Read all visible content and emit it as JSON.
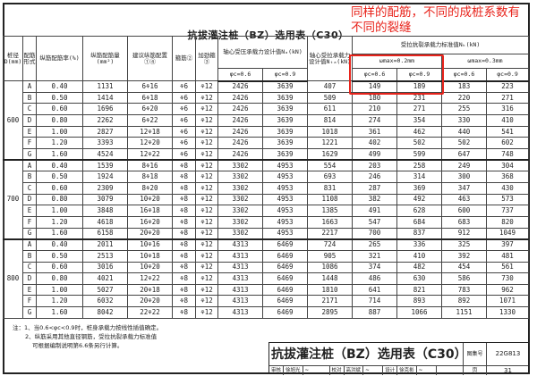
{
  "title": "抗拔灌注桩（BZ）选用表（C30）",
  "annotation": {
    "text": "同样的配筋，不同的成桩系数有不同的裂缝",
    "color": "#e8241c"
  },
  "headers": {
    "diameter": "桩径D(mm)",
    "form": "配筋形式",
    "ratio": "纵筋配筋率(%)",
    "area": "纵筋配筋量(mm²)",
    "suggest": "建议纵筋配置①④",
    "stirrup": "箍筋②",
    "ring": "加劲箍③",
    "compress": "轴心受压承载力设计值Nₐ(kN)",
    "tension": "轴心受拉承载力设计值Nₜₐ(kN)",
    "crack": "受拉抗裂承载力标准值Nₖ(kN)",
    "w02": "ωmax=0.2mm",
    "w03": "ωmax=0.3mm",
    "phi06": "φc=0.6",
    "phi09": "φc=0.9"
  },
  "groups": [
    {
      "diameter": "600",
      "rows": [
        [
          "A",
          "0.40",
          "1131",
          "6⚘16",
          "⚘6",
          "⚘12",
          "2426",
          "3639",
          "407",
          "149",
          "189",
          "183",
          "223"
        ],
        [
          "B",
          "0.50",
          "1414",
          "6⚘18",
          "⚘6",
          "⚘12",
          "2426",
          "3639",
          "509",
          "180",
          "231",
          "220",
          "271"
        ],
        [
          "C",
          "0.60",
          "1696",
          "6⚘20",
          "⚘6",
          "⚘12",
          "2426",
          "3639",
          "611",
          "210",
          "271",
          "255",
          "316"
        ],
        [
          "D",
          "0.80",
          "2262",
          "6⚘22",
          "⚘6",
          "⚘12",
          "2426",
          "3639",
          "814",
          "274",
          "354",
          "330",
          "410"
        ],
        [
          "E",
          "1.00",
          "2827",
          "12⚘18",
          "⚘6",
          "⚘12",
          "2426",
          "3639",
          "1018",
          "361",
          "462",
          "440",
          "541"
        ],
        [
          "F",
          "1.20",
          "3393",
          "12⚘20",
          "⚘6",
          "⚘12",
          "2426",
          "3639",
          "1221",
          "402",
          "502",
          "502",
          "602"
        ],
        [
          "G",
          "1.60",
          "4524",
          "12⚘22",
          "⚘6",
          "⚘12",
          "2426",
          "3639",
          "1629",
          "499",
          "599",
          "647",
          "748"
        ]
      ]
    },
    {
      "diameter": "700",
      "rows": [
        [
          "A",
          "0.40",
          "1539",
          "8⚘16",
          "⚘8",
          "⚘12",
          "3302",
          "4953",
          "554",
          "203",
          "258",
          "249",
          "304"
        ],
        [
          "B",
          "0.50",
          "1924",
          "8⚘18",
          "⚘8",
          "⚘12",
          "3302",
          "4953",
          "693",
          "246",
          "314",
          "300",
          "368"
        ],
        [
          "C",
          "0.60",
          "2309",
          "8⚘20",
          "⚘8",
          "⚘12",
          "3302",
          "4953",
          "831",
          "287",
          "369",
          "347",
          "430"
        ],
        [
          "D",
          "0.80",
          "3079",
          "10⚘20",
          "⚘8",
          "⚘12",
          "3302",
          "4953",
          "1108",
          "382",
          "492",
          "463",
          "573"
        ],
        [
          "E",
          "1.00",
          "3848",
          "16⚘18",
          "⚘8",
          "⚘12",
          "3302",
          "4953",
          "1385",
          "491",
          "628",
          "600",
          "737"
        ],
        [
          "F",
          "1.20",
          "4618",
          "16⚘20",
          "⚘8",
          "⚘12",
          "3302",
          "4953",
          "1663",
          "547",
          "684",
          "683",
          "820"
        ],
        [
          "G",
          "1.60",
          "6158",
          "20⚘20",
          "⚘8",
          "⚘12",
          "3302",
          "4953",
          "2217",
          "700",
          "837",
          "912",
          "1049"
        ]
      ]
    },
    {
      "diameter": "800",
      "rows": [
        [
          "A",
          "0.40",
          "2011",
          "10⚘16",
          "⚘8",
          "⚘12",
          "4313",
          "6469",
          "724",
          "265",
          "336",
          "325",
          "397"
        ],
        [
          "B",
          "0.50",
          "2513",
          "10⚘18",
          "⚘8",
          "⚘12",
          "4313",
          "6469",
          "905",
          "321",
          "410",
          "392",
          "481"
        ],
        [
          "C",
          "0.60",
          "3016",
          "10⚘20",
          "⚘8",
          "⚘12",
          "4313",
          "6469",
          "1086",
          "374",
          "482",
          "454",
          "561"
        ],
        [
          "D",
          "0.80",
          "4021",
          "12⚘22",
          "⚘8",
          "⚘12",
          "4313",
          "6469",
          "1448",
          "486",
          "630",
          "586",
          "730"
        ],
        [
          "E",
          "1.00",
          "5027",
          "20⚘18",
          "⚘8",
          "⚘12",
          "4313",
          "6469",
          "1810",
          "641",
          "821",
          "783",
          "962"
        ],
        [
          "F",
          "1.20",
          "6032",
          "20⚘20",
          "⚘8",
          "⚘12",
          "4313",
          "6469",
          "2171",
          "714",
          "893",
          "892",
          "1071"
        ],
        [
          "G",
          "1.60",
          "8042",
          "22⚘22",
          "⚘8",
          "⚘12",
          "4313",
          "6469",
          "2895",
          "887",
          "1066",
          "1151",
          "1330"
        ]
      ]
    }
  ],
  "notes": [
    "注：1、当0.6<φc<0.9时，桩身承载力按线性插值确定。",
    "2、纵筋采用其他直径钢筋，受拉抗裂承载力标准值",
    "可根据编制说明第6.6条另行计算。"
  ],
  "titleblock": {
    "title": "抗拔灌注桩（BZ）选用表（C30）",
    "atlas_label": "图集号",
    "atlas_no": "22G813",
    "page_label": "页",
    "page_no": "31",
    "review": "审核",
    "reviewer": "徐旭光",
    "check": "校对",
    "checker": "高洪斌",
    "design": "设计",
    "designer": "徐克彬"
  }
}
